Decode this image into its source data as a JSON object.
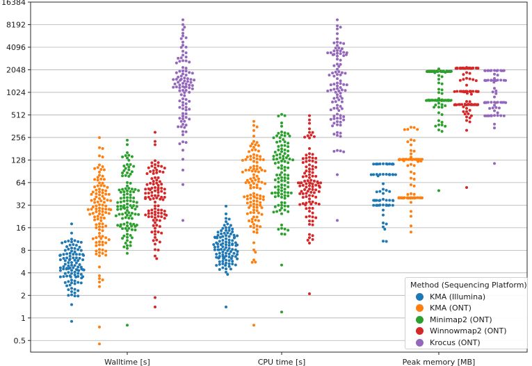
{
  "chart_data": {
    "type": "swarm",
    "y_scale": "log2",
    "ylim": [
      0.35,
      16384
    ],
    "yticks": [
      0.5,
      1,
      2,
      4,
      8,
      16,
      32,
      64,
      128,
      256,
      512,
      1024,
      2048,
      4096,
      8192,
      16384
    ],
    "ytick_labels": [
      "0.5",
      "1",
      "2",
      "4",
      "8",
      "16",
      "32",
      "64",
      "128",
      "256",
      "512",
      "1024",
      "2048",
      "4096",
      "8192",
      "16384"
    ],
    "grid": "horizontal",
    "categories": [
      "Walltime [s]",
      "CPU time [s]",
      "Peak memory [MB]"
    ],
    "legend": {
      "title": "Method (Sequencing Platform)",
      "location": "lower right"
    },
    "series": [
      {
        "name": "KMA (Illumina)",
        "color": "#1f77b4",
        "distributions": [
          {
            "category": "Walltime [s]",
            "n": 110,
            "min": 0.9,
            "q1": 3.7,
            "median": 5.2,
            "q3": 7.0,
            "max": 18,
            "levels": []
          },
          {
            "category": "CPU time [s]",
            "n": 110,
            "min": 1.4,
            "q1": 6.5,
            "median": 8.5,
            "q3": 11.5,
            "max": 31,
            "levels": []
          },
          {
            "category": "Peak memory [MB]",
            "n": 65,
            "min": 10.5,
            "q1": 30,
            "median": 36,
            "q3": 80,
            "max": 113,
            "levels": [
              113,
              82,
              37,
              32
            ]
          }
        ]
      },
      {
        "name": "KMA (ONT)",
        "color": "#ff7f0e",
        "distributions": [
          {
            "category": "Walltime [s]",
            "n": 120,
            "min": 0.45,
            "q1": 12,
            "median": 30,
            "q3": 50,
            "max": 255,
            "levels": []
          },
          {
            "category": "CPU time [s]",
            "n": 120,
            "min": 0.8,
            "q1": 25,
            "median": 55,
            "q3": 90,
            "max": 420,
            "levels": []
          },
          {
            "category": "Peak memory [MB]",
            "n": 115,
            "min": 14,
            "q1": 40,
            "median": 110,
            "q3": 130,
            "max": 350,
            "levels": [
              130,
              40
            ]
          }
        ]
      },
      {
        "name": "Minimap2 (ONT)",
        "color": "#2ca02c",
        "distributions": [
          {
            "category": "Walltime [s]",
            "n": 115,
            "min": 0.8,
            "q1": 18,
            "median": 33,
            "q3": 55,
            "max": 235,
            "levels": []
          },
          {
            "category": "CPU time [s]",
            "n": 115,
            "min": 1.2,
            "q1": 30,
            "median": 65,
            "q3": 110,
            "max": 520,
            "levels": []
          },
          {
            "category": "Peak memory [MB]",
            "n": 110,
            "min": 50,
            "q1": 500,
            "median": 1200,
            "q3": 1900,
            "max": 2100,
            "levels": [
              1950,
              800
            ]
          }
        ]
      },
      {
        "name": "Winnowmap2 (ONT)",
        "color": "#d62728",
        "distributions": [
          {
            "category": "Walltime [s]",
            "n": 110,
            "min": 1.4,
            "q1": 20,
            "median": 38,
            "q3": 55,
            "max": 300,
            "levels": []
          },
          {
            "category": "CPU time [s]",
            "n": 110,
            "min": 2.1,
            "q1": 30,
            "median": 55,
            "q3": 90,
            "max": 500,
            "levels": []
          },
          {
            "category": "Peak memory [MB]",
            "n": 110,
            "min": 55,
            "q1": 700,
            "median": 1300,
            "q3": 2100,
            "max": 2200,
            "levels": [
              2150,
              1050,
              700
            ]
          }
        ]
      },
      {
        "name": "Krocus (ONT)",
        "color": "#9467bd",
        "distributions": [
          {
            "category": "Walltime [s]",
            "n": 105,
            "min": 20,
            "q1": 500,
            "median": 1200,
            "q3": 2000,
            "max": 9500,
            "levels": []
          },
          {
            "category": "CPU time [s]",
            "n": 105,
            "min": 20,
            "q1": 500,
            "median": 1200,
            "q3": 2000,
            "max": 9500,
            "levels": []
          },
          {
            "category": "Peak memory [MB]",
            "n": 70,
            "min": 115,
            "q1": 500,
            "median": 750,
            "q3": 1500,
            "max": 2000,
            "levels": [
              2000,
              1480,
              750,
              500
            ]
          }
        ]
      }
    ]
  }
}
